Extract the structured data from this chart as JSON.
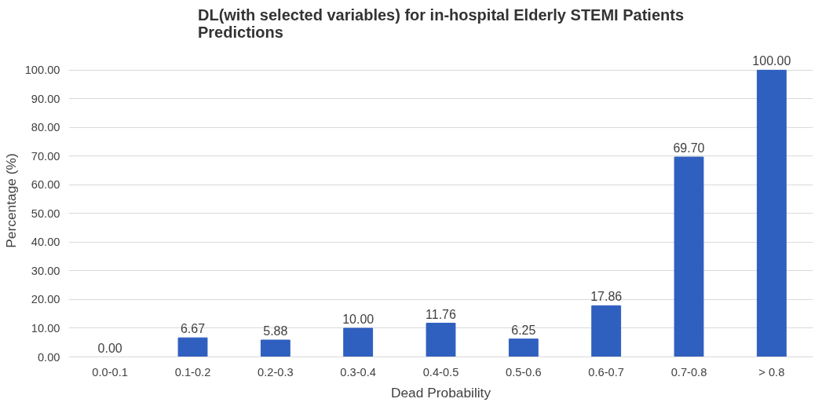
{
  "chart_data": {
    "type": "bar",
    "title": "DL(with selected variables) for in-hospital Elderly STEMI Patients\nPredictions",
    "xlabel": "Dead Probability",
    "ylabel": "Percentage (%)",
    "categories": [
      "0.0-0.1",
      "0.1-0.2",
      "0.2-0.3",
      "0.3-0.4",
      "0.4-0.5",
      "0.5-0.6",
      "0.6-0.7",
      "0.7-0.8",
      "> 0.8"
    ],
    "values": [
      0,
      6.67,
      5.88,
      10,
      11.76,
      6.25,
      17.86,
      69.7,
      100
    ],
    "value_labels": [
      "0.00",
      "6.67",
      "5.88",
      "10.00",
      "11.76",
      "6.25",
      "17.86",
      "69.70",
      "100.00"
    ],
    "color": "#2f5fbf",
    "ylim": [
      0,
      100
    ],
    "yticks": [
      {
        "value": 0,
        "label": "0.00"
      },
      {
        "value": 10,
        "label": "10.00"
      },
      {
        "value": 20,
        "label": "20.00"
      },
      {
        "value": 30,
        "label": "30.00"
      },
      {
        "value": 40,
        "label": "40.00"
      },
      {
        "value": 50,
        "label": "50.00"
      },
      {
        "value": 60,
        "label": "60.00"
      },
      {
        "value": 70,
        "label": "70.00"
      },
      {
        "value": 80,
        "label": "80.00"
      },
      {
        "value": 90,
        "label": "90.00"
      },
      {
        "value": 100,
        "label": "100.00"
      }
    ],
    "grid": "y"
  }
}
